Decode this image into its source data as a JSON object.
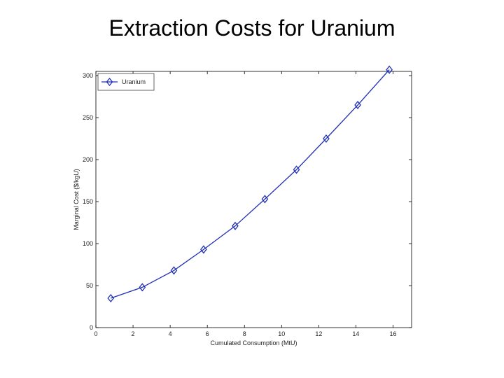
{
  "slide": {
    "title": "Extraction Costs for Uranium"
  },
  "chart_data": {
    "type": "line",
    "title": "",
    "xlabel": "Cumulated Consumption (MtU)",
    "ylabel": "Marginal Cost ($/kgU)",
    "xlim": [
      0,
      17
    ],
    "ylim": [
      0,
      305
    ],
    "xticks": [
      0,
      2,
      4,
      6,
      8,
      10,
      12,
      14,
      16
    ],
    "yticks": [
      0,
      50,
      100,
      150,
      200,
      250,
      300
    ],
    "grid": false,
    "legend": "top-left",
    "series": [
      {
        "name": "Uranium",
        "color": "#1f2fb5",
        "marker": "diamond",
        "x": [
          0.8,
          2.5,
          4.2,
          5.8,
          7.5,
          9.1,
          10.8,
          12.4,
          14.1,
          15.8
        ],
        "y": [
          35,
          48,
          68,
          93,
          121,
          153,
          188,
          225,
          265,
          307
        ]
      }
    ]
  }
}
